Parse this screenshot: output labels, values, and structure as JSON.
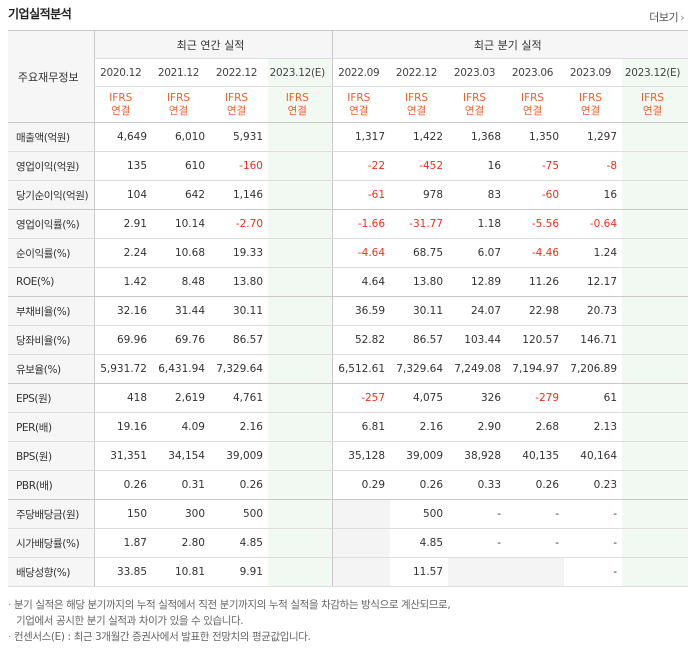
{
  "header": {
    "title": "기업실적분석",
    "more_label": "더보기",
    "more_arrow": "›"
  },
  "table": {
    "label_header": "주요재무정보",
    "annual_header": "최근 연간 실적",
    "quarter_header": "최근 분기 실적",
    "annual_periods": [
      "2020.12",
      "2021.12",
      "2022.12",
      "2023.12(E)"
    ],
    "quarter_periods": [
      "2022.09",
      "2022.12",
      "2023.03",
      "2023.06",
      "2023.09",
      "2023.12(E)"
    ],
    "standard_line1": "IFRS",
    "standard_line2": "연결",
    "rows": [
      {
        "label": "매출액(억원)",
        "annual": [
          "4,649",
          "6,010",
          "5,931",
          ""
        ],
        "quarter": [
          "1,317",
          "1,422",
          "1,368",
          "1,350",
          "1,297",
          ""
        ]
      },
      {
        "label": "영업이익(억원)",
        "annual": [
          "135",
          "610",
          "-160",
          ""
        ],
        "quarter": [
          "-22",
          "-452",
          "16",
          "-75",
          "-8",
          ""
        ]
      },
      {
        "label": "당기순이익(억원)",
        "annual": [
          "104",
          "642",
          "1,146",
          ""
        ],
        "quarter": [
          "-61",
          "978",
          "83",
          "-60",
          "16",
          ""
        ]
      },
      {
        "label": "영업이익률(%)",
        "annual": [
          "2.91",
          "10.14",
          "-2.70",
          ""
        ],
        "quarter": [
          "-1.66",
          "-31.77",
          "1.18",
          "-5.56",
          "-0.64",
          ""
        ]
      },
      {
        "label": "순이익률(%)",
        "annual": [
          "2.24",
          "10.68",
          "19.33",
          ""
        ],
        "quarter": [
          "-4.64",
          "68.75",
          "6.07",
          "-4.46",
          "1.24",
          ""
        ]
      },
      {
        "label": "ROE(%)",
        "annual": [
          "1.42",
          "8.48",
          "13.80",
          ""
        ],
        "quarter": [
          "4.64",
          "13.80",
          "12.89",
          "11.26",
          "12.17",
          ""
        ]
      },
      {
        "label": "부채비율(%)",
        "annual": [
          "32.16",
          "31.44",
          "30.11",
          ""
        ],
        "quarter": [
          "36.59",
          "30.11",
          "24.07",
          "22.98",
          "20.73",
          ""
        ]
      },
      {
        "label": "당좌비율(%)",
        "annual": [
          "69.96",
          "69.76",
          "86.57",
          ""
        ],
        "quarter": [
          "52.82",
          "86.57",
          "103.44",
          "120.57",
          "146.71",
          ""
        ]
      },
      {
        "label": "유보율(%)",
        "annual": [
          "5,931.72",
          "6,431.94",
          "7,329.64",
          ""
        ],
        "quarter": [
          "6,512.61",
          "7,329.64",
          "7,249.08",
          "7,194.97",
          "7,206.89",
          ""
        ]
      },
      {
        "label": "EPS(원)",
        "annual": [
          "418",
          "2,619",
          "4,761",
          ""
        ],
        "quarter": [
          "-257",
          "4,075",
          "326",
          "-279",
          "61",
          ""
        ]
      },
      {
        "label": "PER(배)",
        "annual": [
          "19.16",
          "4.09",
          "2.16",
          ""
        ],
        "quarter": [
          "6.81",
          "2.16",
          "2.90",
          "2.68",
          "2.13",
          ""
        ]
      },
      {
        "label": "BPS(원)",
        "annual": [
          "31,351",
          "34,154",
          "39,009",
          ""
        ],
        "quarter": [
          "35,128",
          "39,009",
          "38,928",
          "40,135",
          "40,164",
          ""
        ]
      },
      {
        "label": "PBR(배)",
        "annual": [
          "0.26",
          "0.31",
          "0.26",
          ""
        ],
        "quarter": [
          "0.29",
          "0.26",
          "0.33",
          "0.26",
          "0.23",
          ""
        ]
      },
      {
        "label": "주당배당금(원)",
        "annual": [
          "150",
          "300",
          "500",
          ""
        ],
        "quarter": [
          "",
          "500",
          "-",
          "-",
          "-",
          ""
        ]
      },
      {
        "label": "시가배당률(%)",
        "annual": [
          "1.87",
          "2.80",
          "4.85",
          ""
        ],
        "quarter": [
          "",
          "4.85",
          "-",
          "-",
          "-",
          ""
        ]
      },
      {
        "label": "배당성향(%)",
        "annual": [
          "33.85",
          "10.81",
          "9.91",
          ""
        ],
        "quarter": [
          "",
          "11.57",
          "",
          "",
          "-",
          ""
        ]
      }
    ]
  },
  "notes": {
    "line1": "분기 실적은 해당 분기까지의 누적 실적에서 직전 분기까지의 누적 실적을 차감하는 방식으로 계산되므로,",
    "line2": "기업에서 공시한 분기 실적과 차이가 있을 수 있습니다.",
    "line3": "컨센서스(E) : 최근 3개월간 증권사에서 발표한 전망치의 평균값입니다."
  }
}
